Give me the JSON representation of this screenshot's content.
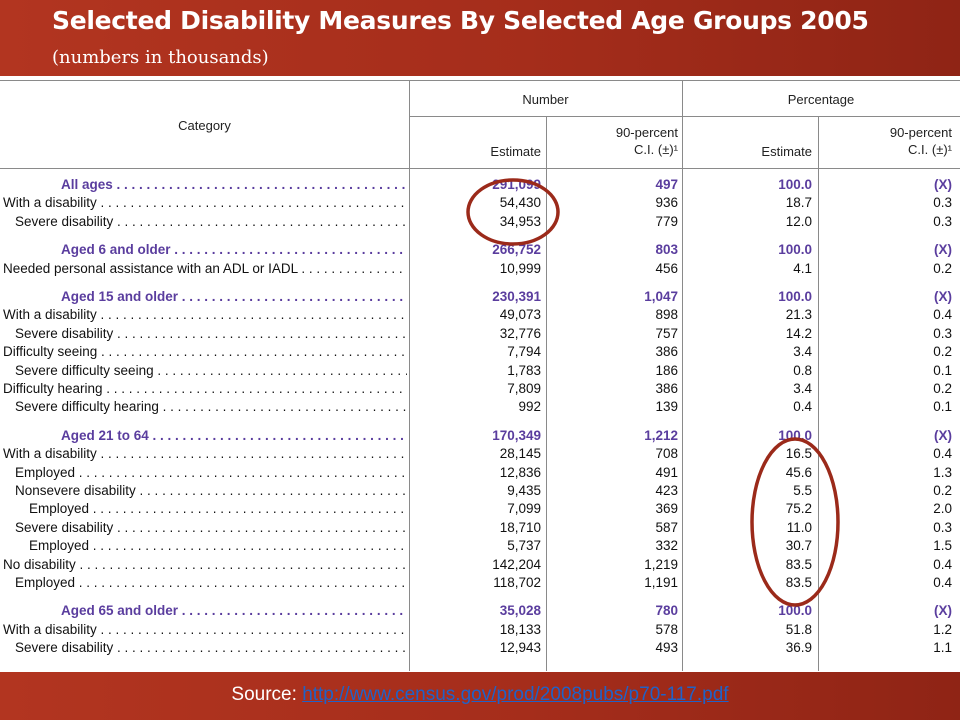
{
  "title": "Selected Disability Measures By Selected Age Groups 2005",
  "subtitle": "(numbers in thousands)",
  "table": {
    "col_category": "Category",
    "group_number": "Number",
    "group_percentage": "Percentage",
    "sub_estimate": "Estimate",
    "sub_ci_line1": "90-percent",
    "sub_ci_line2": "C.I. (±)¹",
    "rows": [
      {
        "label": "All ages",
        "values": [
          "291,099",
          "497",
          "100.0",
          "(X)"
        ],
        "kind": "group",
        "indent": 0
      },
      {
        "label": "With a disability",
        "values": [
          "54,430",
          "936",
          "18.7",
          "0.3"
        ],
        "kind": "item",
        "indent": 0
      },
      {
        "label": "Severe disability",
        "values": [
          "34,953",
          "779",
          "12.0",
          "0.3"
        ],
        "kind": "item",
        "indent": 1
      },
      {
        "label": "Aged 6 and older",
        "values": [
          "266,752",
          "803",
          "100.0",
          "(X)"
        ],
        "kind": "group",
        "indent": 0
      },
      {
        "label": "Needed personal assistance with an ADL or IADL",
        "values": [
          "10,999",
          "456",
          "4.1",
          "0.2"
        ],
        "kind": "item",
        "indent": 0
      },
      {
        "label": "Aged 15 and older",
        "values": [
          "230,391",
          "1,047",
          "100.0",
          "(X)"
        ],
        "kind": "group",
        "indent": 0
      },
      {
        "label": "With a disability",
        "values": [
          "49,073",
          "898",
          "21.3",
          "0.4"
        ],
        "kind": "item",
        "indent": 0
      },
      {
        "label": "Severe disability",
        "values": [
          "32,776",
          "757",
          "14.2",
          "0.3"
        ],
        "kind": "item",
        "indent": 1
      },
      {
        "label": "Difficulty seeing",
        "values": [
          "7,794",
          "386",
          "3.4",
          "0.2"
        ],
        "kind": "item",
        "indent": 0
      },
      {
        "label": "Severe difficulty seeing",
        "values": [
          "1,783",
          "186",
          "0.8",
          "0.1"
        ],
        "kind": "item",
        "indent": 1
      },
      {
        "label": "Difficulty hearing",
        "values": [
          "7,809",
          "386",
          "3.4",
          "0.2"
        ],
        "kind": "item",
        "indent": 0
      },
      {
        "label": "Severe difficulty hearing",
        "values": [
          "992",
          "139",
          "0.4",
          "0.1"
        ],
        "kind": "item",
        "indent": 1
      },
      {
        "label": "Aged 21 to 64",
        "values": [
          "170,349",
          "1,212",
          "100.0",
          "(X)"
        ],
        "kind": "group",
        "indent": 0
      },
      {
        "label": "With a disability",
        "values": [
          "28,145",
          "708",
          "16.5",
          "0.4"
        ],
        "kind": "item",
        "indent": 0
      },
      {
        "label": "Employed",
        "values": [
          "12,836",
          "491",
          "45.6",
          "1.3"
        ],
        "kind": "item",
        "indent": 1
      },
      {
        "label": "Nonsevere disability",
        "values": [
          "9,435",
          "423",
          "5.5",
          "0.2"
        ],
        "kind": "item",
        "indent": 1
      },
      {
        "label": "Employed",
        "values": [
          "7,099",
          "369",
          "75.2",
          "2.0"
        ],
        "kind": "item",
        "indent": 2
      },
      {
        "label": "Severe disability",
        "values": [
          "18,710",
          "587",
          "11.0",
          "0.3"
        ],
        "kind": "item",
        "indent": 1
      },
      {
        "label": "Employed",
        "values": [
          "5,737",
          "332",
          "30.7",
          "1.5"
        ],
        "kind": "item",
        "indent": 2
      },
      {
        "label": "No disability",
        "values": [
          "142,204",
          "1,219",
          "83.5",
          "0.4"
        ],
        "kind": "item",
        "indent": 0
      },
      {
        "label": "Employed",
        "values": [
          "118,702",
          "1,191",
          "83.5",
          "0.4"
        ],
        "kind": "item",
        "indent": 1
      },
      {
        "label": "Aged 65 and older",
        "values": [
          "35,028",
          "780",
          "100.0",
          "(X)"
        ],
        "kind": "group",
        "indent": 0
      },
      {
        "label": "With a disability",
        "values": [
          "18,133",
          "578",
          "51.8",
          "1.2"
        ],
        "kind": "item",
        "indent": 0
      },
      {
        "label": "Severe disability",
        "values": [
          "12,943",
          "493",
          "36.9",
          "1.1"
        ],
        "kind": "item",
        "indent": 1
      }
    ]
  },
  "footer": {
    "source_label": "Source:",
    "source_link": "http://www.census.gov/prod/2008pubs/p70-117.pdf"
  },
  "colors": {
    "band": "#a8301d",
    "group_text": "#5a3d9e",
    "highlight_ring": "#9b2a1a",
    "link": "#1f62c8"
  }
}
